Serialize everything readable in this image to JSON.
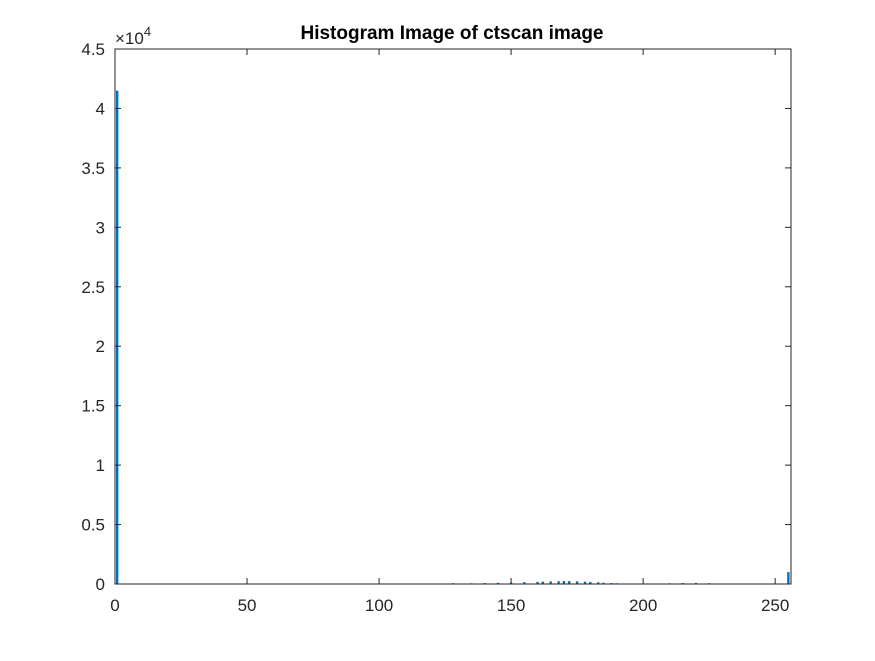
{
  "chart_data": {
    "type": "bar",
    "title": "Histogram Image of ctscan image",
    "xlabel": "",
    "ylabel": "",
    "xlim": [
      0,
      256
    ],
    "ylim": [
      0,
      45000
    ],
    "y_exponent_label": "×10",
    "y_exponent_power": "4",
    "x_ticks": [
      0,
      50,
      100,
      150,
      200,
      250
    ],
    "x_tick_labels": [
      "0",
      "50",
      "100",
      "150",
      "200",
      "250"
    ],
    "y_ticks": [
      0,
      5000,
      10000,
      15000,
      20000,
      25000,
      30000,
      35000,
      40000,
      45000
    ],
    "y_tick_labels": [
      "0",
      "0.5",
      "1",
      "1.5",
      "2",
      "2.5",
      "3",
      "3.5",
      "4",
      "4.5"
    ],
    "grid": false,
    "legend": "none",
    "bar_color": "#0072BD",
    "bins": [
      0,
      120,
      125,
      128,
      130,
      135,
      140,
      145,
      150,
      155,
      160,
      162,
      165,
      168,
      170,
      172,
      175,
      178,
      180,
      183,
      185,
      188,
      190,
      195,
      200,
      205,
      210,
      215,
      220,
      225,
      230,
      235,
      240,
      245,
      250,
      255
    ],
    "counts": [
      41500,
      20,
      40,
      70,
      50,
      60,
      80,
      100,
      120,
      150,
      180,
      200,
      220,
      240,
      250,
      240,
      220,
      200,
      170,
      140,
      110,
      80,
      60,
      40,
      30,
      40,
      60,
      80,
      90,
      70,
      50,
      30,
      20,
      20,
      30,
      1000
    ]
  }
}
